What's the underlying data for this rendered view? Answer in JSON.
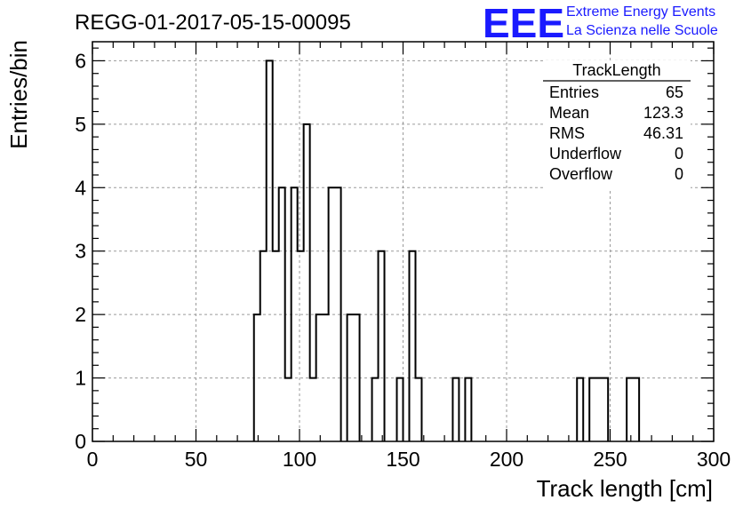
{
  "chart_data": {
    "type": "bar",
    "title": "REGG-01-2017-05-15-00095",
    "xlabel": "Track length [cm]",
    "ylabel": "Entries/bin",
    "xlim": [
      0,
      300
    ],
    "ylim": [
      0,
      6.3
    ],
    "bin_width": 3,
    "x_ticks": [
      0,
      50,
      100,
      150,
      200,
      250,
      300
    ],
    "y_ticks": [
      0,
      1,
      2,
      3,
      4,
      5,
      6
    ],
    "grid": true,
    "bins": [
      {
        "x": 78,
        "value": 2
      },
      {
        "x": 81,
        "value": 3
      },
      {
        "x": 84,
        "value": 6
      },
      {
        "x": 87,
        "value": 3
      },
      {
        "x": 90,
        "value": 4
      },
      {
        "x": 93,
        "value": 1
      },
      {
        "x": 96,
        "value": 4
      },
      {
        "x": 99,
        "value": 3
      },
      {
        "x": 102,
        "value": 5
      },
      {
        "x": 105,
        "value": 1
      },
      {
        "x": 108,
        "value": 2
      },
      {
        "x": 111,
        "value": 2
      },
      {
        "x": 114,
        "value": 4
      },
      {
        "x": 117,
        "value": 4
      },
      {
        "x": 123,
        "value": 2
      },
      {
        "x": 126,
        "value": 2
      },
      {
        "x": 135,
        "value": 1
      },
      {
        "x": 138,
        "value": 3
      },
      {
        "x": 147,
        "value": 1
      },
      {
        "x": 153,
        "value": 3
      },
      {
        "x": 156,
        "value": 1
      },
      {
        "x": 174,
        "value": 1
      },
      {
        "x": 180,
        "value": 1
      },
      {
        "x": 234,
        "value": 1
      },
      {
        "x": 240,
        "value": 1
      },
      {
        "x": 243,
        "value": 1
      },
      {
        "x": 246,
        "value": 1
      },
      {
        "x": 258,
        "value": 1
      },
      {
        "x": 261,
        "value": 1
      }
    ],
    "stats_box": {
      "name": "TrackLength",
      "rows": [
        {
          "label": "Entries",
          "value": "65"
        },
        {
          "label": "Mean",
          "value": "123.3"
        },
        {
          "label": "RMS",
          "value": "46.31"
        },
        {
          "label": "Underflow",
          "value": "0"
        },
        {
          "label": "Overflow",
          "value": "0"
        }
      ]
    }
  },
  "logo": {
    "mark": "EEE",
    "line1": "Extreme Energy Events",
    "line2": "La Scienza nelle Scuole",
    "color": "#1a1aff"
  },
  "colors": {
    "histogram_line": "#000000",
    "grid": "#9a9a9a",
    "frame": "#000000"
  }
}
